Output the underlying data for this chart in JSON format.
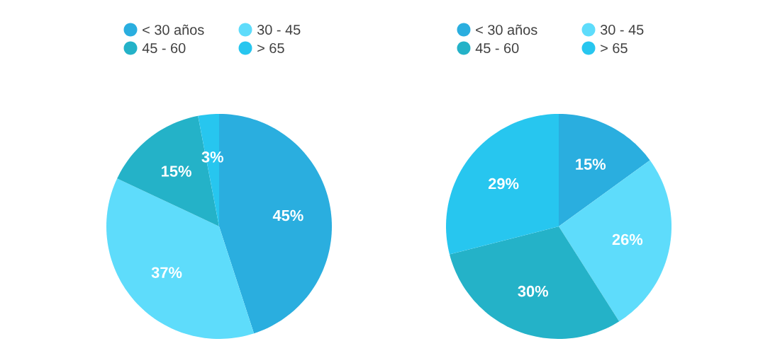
{
  "chart_data": [
    {
      "type": "pie",
      "categories": [
        "< 30 años",
        "30 - 45",
        "45 - 60",
        "> 65"
      ],
      "values": [
        45,
        37,
        15,
        3
      ],
      "value_labels": [
        "45%",
        "37%",
        "15%",
        "3%"
      ],
      "colors": [
        "#2aaedf",
        "#5edcfb",
        "#24b2c8",
        "#27c6ef"
      ],
      "legend": "top"
    },
    {
      "type": "pie",
      "categories": [
        "< 30 años",
        "30 - 45",
        "45 - 60",
        "> 65"
      ],
      "values": [
        15,
        26,
        30,
        29
      ],
      "value_labels": [
        "15%",
        "26%",
        "30%",
        "29%"
      ],
      "colors": [
        "#2aaedf",
        "#5edcfb",
        "#24b2c8",
        "#27c6ef"
      ],
      "legend": "top"
    }
  ]
}
